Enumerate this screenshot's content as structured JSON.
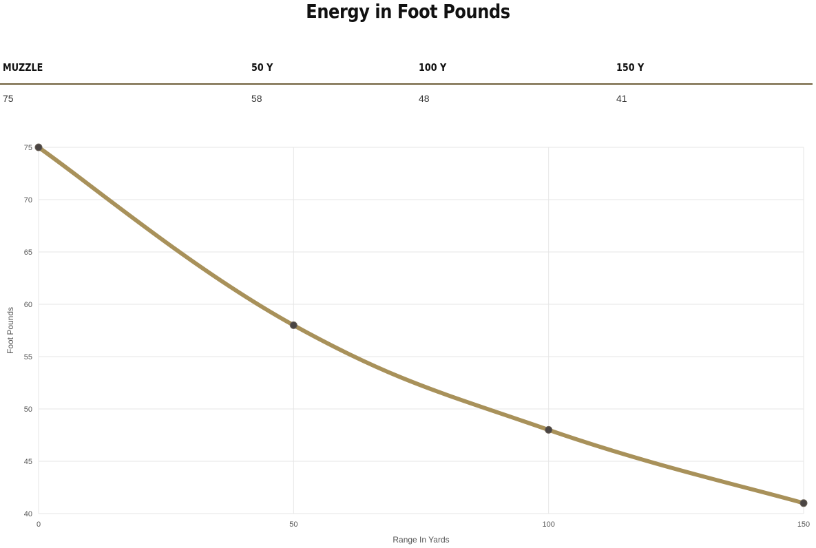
{
  "title": "Energy in Foot Pounds",
  "table": {
    "headers": [
      "MUZZLE",
      "50 Y",
      "100 Y",
      "150 Y"
    ],
    "values": [
      "75",
      "58",
      "48",
      "41"
    ]
  },
  "chart_data": {
    "type": "line",
    "x": [
      0,
      50,
      100,
      150
    ],
    "series": [
      {
        "values": [
          75,
          58,
          48,
          41
        ]
      }
    ],
    "xlabel": "Range In Yards",
    "ylabel": "Foot Pounds",
    "xlim": [
      0,
      150
    ],
    "ylim": [
      40,
      75
    ],
    "xticks": [
      0,
      50,
      100,
      150
    ],
    "yticks": [
      40,
      45,
      50,
      55,
      60,
      65,
      70,
      75
    ],
    "grid": true,
    "legend": "none",
    "line_color": "#a8915a",
    "point_color": "#4a4543",
    "grid_color": "#e6e6e6"
  }
}
